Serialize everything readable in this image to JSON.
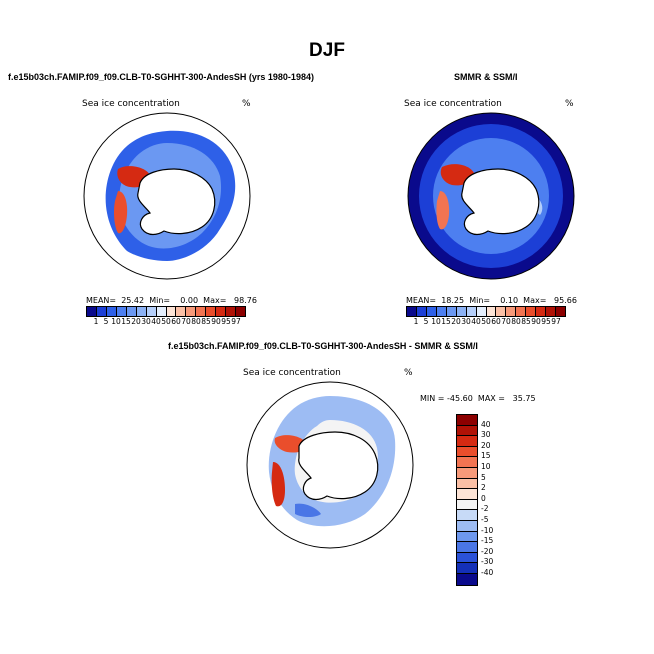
{
  "figure": {
    "title": "DJF"
  },
  "panels": [
    {
      "title": "f.e15b03ch.FAMIP.f09_f09.CLB-T0-SGHHT-300-AndesSH (yrs 1980-1984)",
      "left_label": "Sea ice concentration",
      "right_label": "%",
      "stats": "MEAN=  25.42  Min=    0.00  Max=   98.76"
    },
    {
      "title": "SMMR & SSM/I",
      "left_label": "Sea ice concentration",
      "right_label": "%",
      "stats": "MEAN=  18.25  Min=    0.10  Max=   95.66"
    },
    {
      "title": "f.e15b03ch.FAMIP.f09_f09.CLB-T0-SGHHT-300-AndesSH - SMMR & SSM/I",
      "left_label": "Sea ice concentration",
      "right_label": "%",
      "stats": "MIN = -45.60  MAX =   35.75"
    }
  ],
  "abs_colorbar": {
    "labels": [
      "1",
      "5",
      "10",
      "15",
      "20",
      "30",
      "40",
      "50",
      "60",
      "70",
      "80",
      "85",
      "90",
      "95",
      "97"
    ],
    "colors": [
      "#0a0a8c",
      "#1c3fd6",
      "#2e60e8",
      "#4d7ff0",
      "#6b98f2",
      "#8cb2f5",
      "#b5cffa",
      "#e4eefc",
      "#fde4d6",
      "#fbc0a6",
      "#f79a7a",
      "#f27452",
      "#ea4e2c",
      "#d52a12",
      "#b01206",
      "#8c0000"
    ]
  },
  "diff_colorbar": {
    "labels": [
      "40",
      "30",
      "20",
      "15",
      "10",
      "5",
      "2",
      "0",
      "-2",
      "-5",
      "-10",
      "-15",
      "-20",
      "-30",
      "-40"
    ],
    "colors": [
      "#8c0000",
      "#b01206",
      "#d52a12",
      "#ea4e2c",
      "#f27452",
      "#f79a7a",
      "#fbc0a6",
      "#fde4d6",
      "#f4f4f4",
      "#c7daf7",
      "#9dbcf3",
      "#6e98ee",
      "#4a76e6",
      "#2b52d8",
      "#1430b8",
      "#0a0a8c"
    ]
  }
}
